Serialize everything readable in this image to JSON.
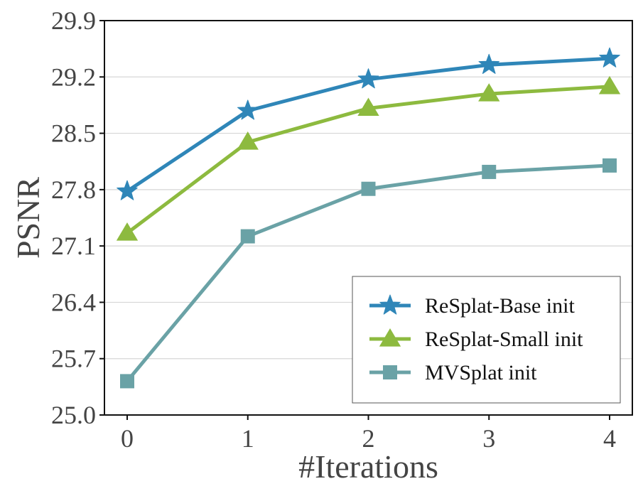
{
  "chart_data": {
    "type": "line",
    "x": [
      0,
      1,
      2,
      3,
      4
    ],
    "xlabel": "#Iterations",
    "ylabel": "PSNR",
    "ylim": [
      25.0,
      29.9
    ],
    "yticks": [
      "25.0",
      "25.7",
      "26.4",
      "27.1",
      "27.8",
      "28.5",
      "29.2",
      "29.9"
    ],
    "xticks": [
      "0",
      "1",
      "2",
      "3",
      "4"
    ],
    "grid": "horizontal",
    "legend_position": "bottom-right",
    "series": [
      {
        "name": "ReSplat-Base init",
        "values": [
          27.78,
          28.78,
          29.17,
          29.35,
          29.43
        ],
        "color": "#2f86b8",
        "marker": "star"
      },
      {
        "name": "ReSplat-Small init",
        "values": [
          27.26,
          28.39,
          28.81,
          28.99,
          29.08
        ],
        "color": "#8dba3f",
        "marker": "triangle"
      },
      {
        "name": "MVSplat init",
        "values": [
          25.42,
          27.22,
          27.81,
          28.02,
          28.1
        ],
        "color": "#6aa2a6",
        "marker": "square"
      }
    ]
  }
}
